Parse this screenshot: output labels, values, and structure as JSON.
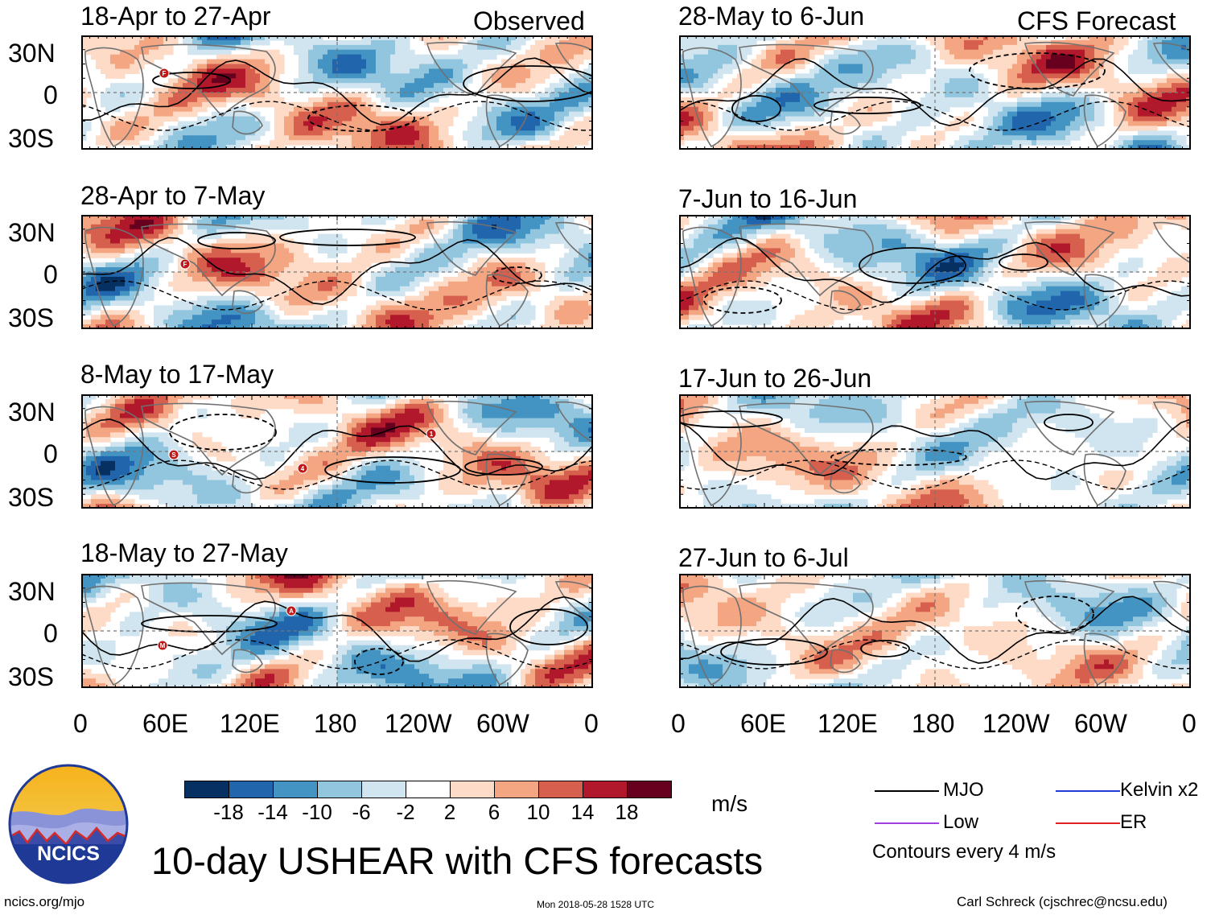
{
  "panels": [
    {
      "date": "18-Apr to 27-Apr",
      "tag": "Observed",
      "seed": 1,
      "markers": [
        "F"
      ]
    },
    {
      "date": "28-May to 6-Jun",
      "tag": "CFS Forecast",
      "seed": 2,
      "markers": []
    },
    {
      "date": "28-Apr to 7-May",
      "tag": "",
      "seed": 3,
      "markers": [
        "F"
      ]
    },
    {
      "date": "7-Jun to 16-Jun",
      "tag": "",
      "seed": 4,
      "markers": []
    },
    {
      "date": "8-May to 17-May",
      "tag": "",
      "seed": 5,
      "markers": [
        "S",
        "4",
        "1"
      ]
    },
    {
      "date": "17-Jun to 26-Jun",
      "tag": "",
      "seed": 6,
      "markers": []
    },
    {
      "date": "18-May to 27-May",
      "tag": "",
      "seed": 7,
      "markers": [
        "M",
        "A"
      ]
    },
    {
      "date": "27-Jun to 6-Jul",
      "tag": "",
      "seed": 8,
      "markers": []
    }
  ],
  "y_ticks": [
    "30N",
    "0",
    "30S"
  ],
  "x_ticks": [
    "0",
    "60E",
    "120E",
    "180",
    "120W",
    "60W",
    "0"
  ],
  "colorbar": {
    "labels": [
      "-18",
      "-14",
      "-10",
      "-6",
      "-2",
      "2",
      "6",
      "10",
      "14",
      "18"
    ],
    "colors": [
      "#053061",
      "#2166ac",
      "#4393c3",
      "#92c5de",
      "#d1e5f0",
      "#ffffff",
      "#fddbc7",
      "#f4a582",
      "#d6604d",
      "#b2182b",
      "#67001f"
    ],
    "unit": "m/s"
  },
  "legend": {
    "mjo": "MJO",
    "kelvin": "Kelvin x2",
    "low": "Low",
    "er": "ER",
    "note": "Contours every 4 m/s",
    "mjo_color": "#000000",
    "kelvin_color": "#1f3fd8",
    "low_color": "#a040e0",
    "er_color": "#e02020"
  },
  "logo_text": "NCICS",
  "title": "10-day USHEAR with CFS forecasts",
  "footer": {
    "left": "ncics.org/mjo",
    "center": "Mon 2018-05-28 1528 UTC",
    "right": "Carl Schreck (cjschrec@ncsu.edu)"
  }
}
